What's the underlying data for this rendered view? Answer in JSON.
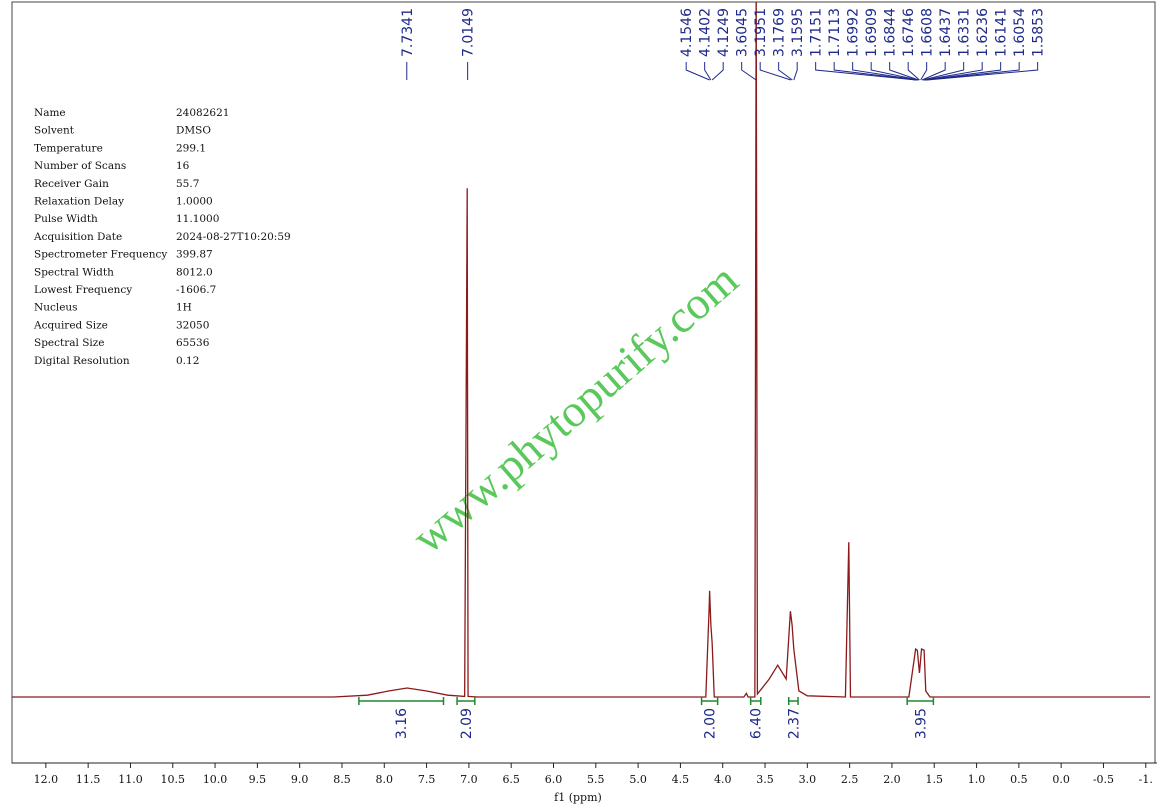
{
  "chart_data": {
    "type": "nmr",
    "x_label": "f1 (ppm)",
    "watermark": "www.phytopurify.com",
    "xlim": [
      12.4,
      -1.05
    ],
    "ylim": [
      0,
      100
    ],
    "xticks": [
      {
        "value": 12,
        "label": "12.0"
      },
      {
        "value": 11.5,
        "label": "11.5"
      },
      {
        "value": 11,
        "label": "11.0"
      },
      {
        "value": 10.5,
        "label": "10.5"
      },
      {
        "value": 10,
        "label": "10.0"
      },
      {
        "value": 9.5,
        "label": "9.5"
      },
      {
        "value": 9,
        "label": "9.0"
      },
      {
        "value": 8.5,
        "label": "8.5"
      },
      {
        "value": 8,
        "label": "8.0"
      },
      {
        "value": 7.5,
        "label": "7.5"
      },
      {
        "value": 7,
        "label": "7.0"
      },
      {
        "value": 6.5,
        "label": "6.5"
      },
      {
        "value": 6,
        "label": "6.0"
      },
      {
        "value": 5.5,
        "label": "5.5"
      },
      {
        "value": 5,
        "label": "5.0"
      },
      {
        "value": 4.5,
        "label": "4.5"
      },
      {
        "value": 4,
        "label": "4.0"
      },
      {
        "value": 3.5,
        "label": "3.5"
      },
      {
        "value": 3,
        "label": "3.0"
      },
      {
        "value": 2.5,
        "label": "2.5"
      },
      {
        "value": 2,
        "label": "2.0"
      },
      {
        "value": 1.5,
        "label": "1.5"
      },
      {
        "value": 1,
        "label": "1.0"
      },
      {
        "value": 0.5,
        "label": "0.5"
      },
      {
        "value": 0,
        "label": "0.0"
      },
      {
        "value": -0.5,
        "label": "-0.5"
      },
      {
        "value": -1,
        "label": "-1."
      }
    ],
    "color": "#8b1a1a",
    "x": [
      12.4,
      8.6,
      8.2,
      7.95,
      7.73,
      7.5,
      7.25,
      7.05,
      7.02,
      7.01,
      6.9,
      4.2,
      4.16,
      4.155,
      4.14,
      4.125,
      4.1,
      3.75,
      3.72,
      3.7,
      3.62,
      3.6045,
      3.59,
      3.45,
      3.35,
      3.25,
      3.2,
      3.18,
      3.16,
      3.1,
      3.0,
      2.55,
      2.51,
      2.49,
      1.8,
      1.72,
      1.7,
      1.675,
      1.65,
      1.62,
      1.6,
      1.55,
      -1.05
    ],
    "values": [
      0,
      0,
      0.3,
      1.0,
      1.5,
      1.0,
      0.3,
      0.1,
      84.8,
      0.1,
      0,
      0,
      15,
      17.7,
      12,
      9,
      0,
      0,
      0.6,
      0,
      0,
      120,
      0.5,
      3,
      5.3,
      3,
      14.3,
      12,
      8,
      1,
      0.2,
      0,
      25.8,
      0,
      0,
      8,
      7.8,
      4,
      8,
      7.8,
      1,
      0,
      0
    ],
    "peak_labels": [
      7.7341,
      7.0149,
      4.1546,
      4.1402,
      4.1249,
      3.6045,
      3.1951,
      3.1769,
      3.1595,
      1.7151,
      1.7113,
      1.6992,
      1.6909,
      1.6844,
      1.6746,
      1.6608,
      1.6437,
      1.6331,
      1.6236,
      1.6141,
      1.6054,
      1.5853
    ],
    "integrals": {
      "ranges": [
        [
          8.3,
          7.3
        ],
        [
          7.14,
          6.93
        ],
        [
          4.25,
          4.06
        ],
        [
          3.67,
          3.55
        ],
        [
          3.22,
          3.11
        ],
        [
          1.82,
          1.51
        ]
      ],
      "values": [
        3.16,
        2.09,
        2.0,
        6.4,
        2.37,
        3.95
      ],
      "value_labels": [
        "3.16",
        "2.09",
        "2.00",
        "6.40",
        "2.37",
        "3.95"
      ]
    },
    "parameters": [
      [
        "Name",
        "24082621"
      ],
      [
        "Solvent",
        "DMSO"
      ],
      [
        "Temperature",
        "299.1"
      ],
      [
        "Number of Scans",
        "16"
      ],
      [
        "Receiver Gain",
        "55.7"
      ],
      [
        "Relaxation Delay",
        "1.0000"
      ],
      [
        "Pulse Width",
        "11.1000"
      ],
      [
        "Acquisition Date",
        "2024-08-27T10:20:59"
      ],
      [
        "Spectrometer Frequency",
        "399.87"
      ],
      [
        "Spectral Width",
        "8012.0"
      ],
      [
        "Lowest Frequency",
        "-1606.7"
      ],
      [
        "Nucleus",
        "1H"
      ],
      [
        "Acquired Size",
        "32050"
      ],
      [
        "Spectral Size",
        "65536"
      ],
      [
        "Digital Resolution",
        "0.12"
      ]
    ]
  }
}
